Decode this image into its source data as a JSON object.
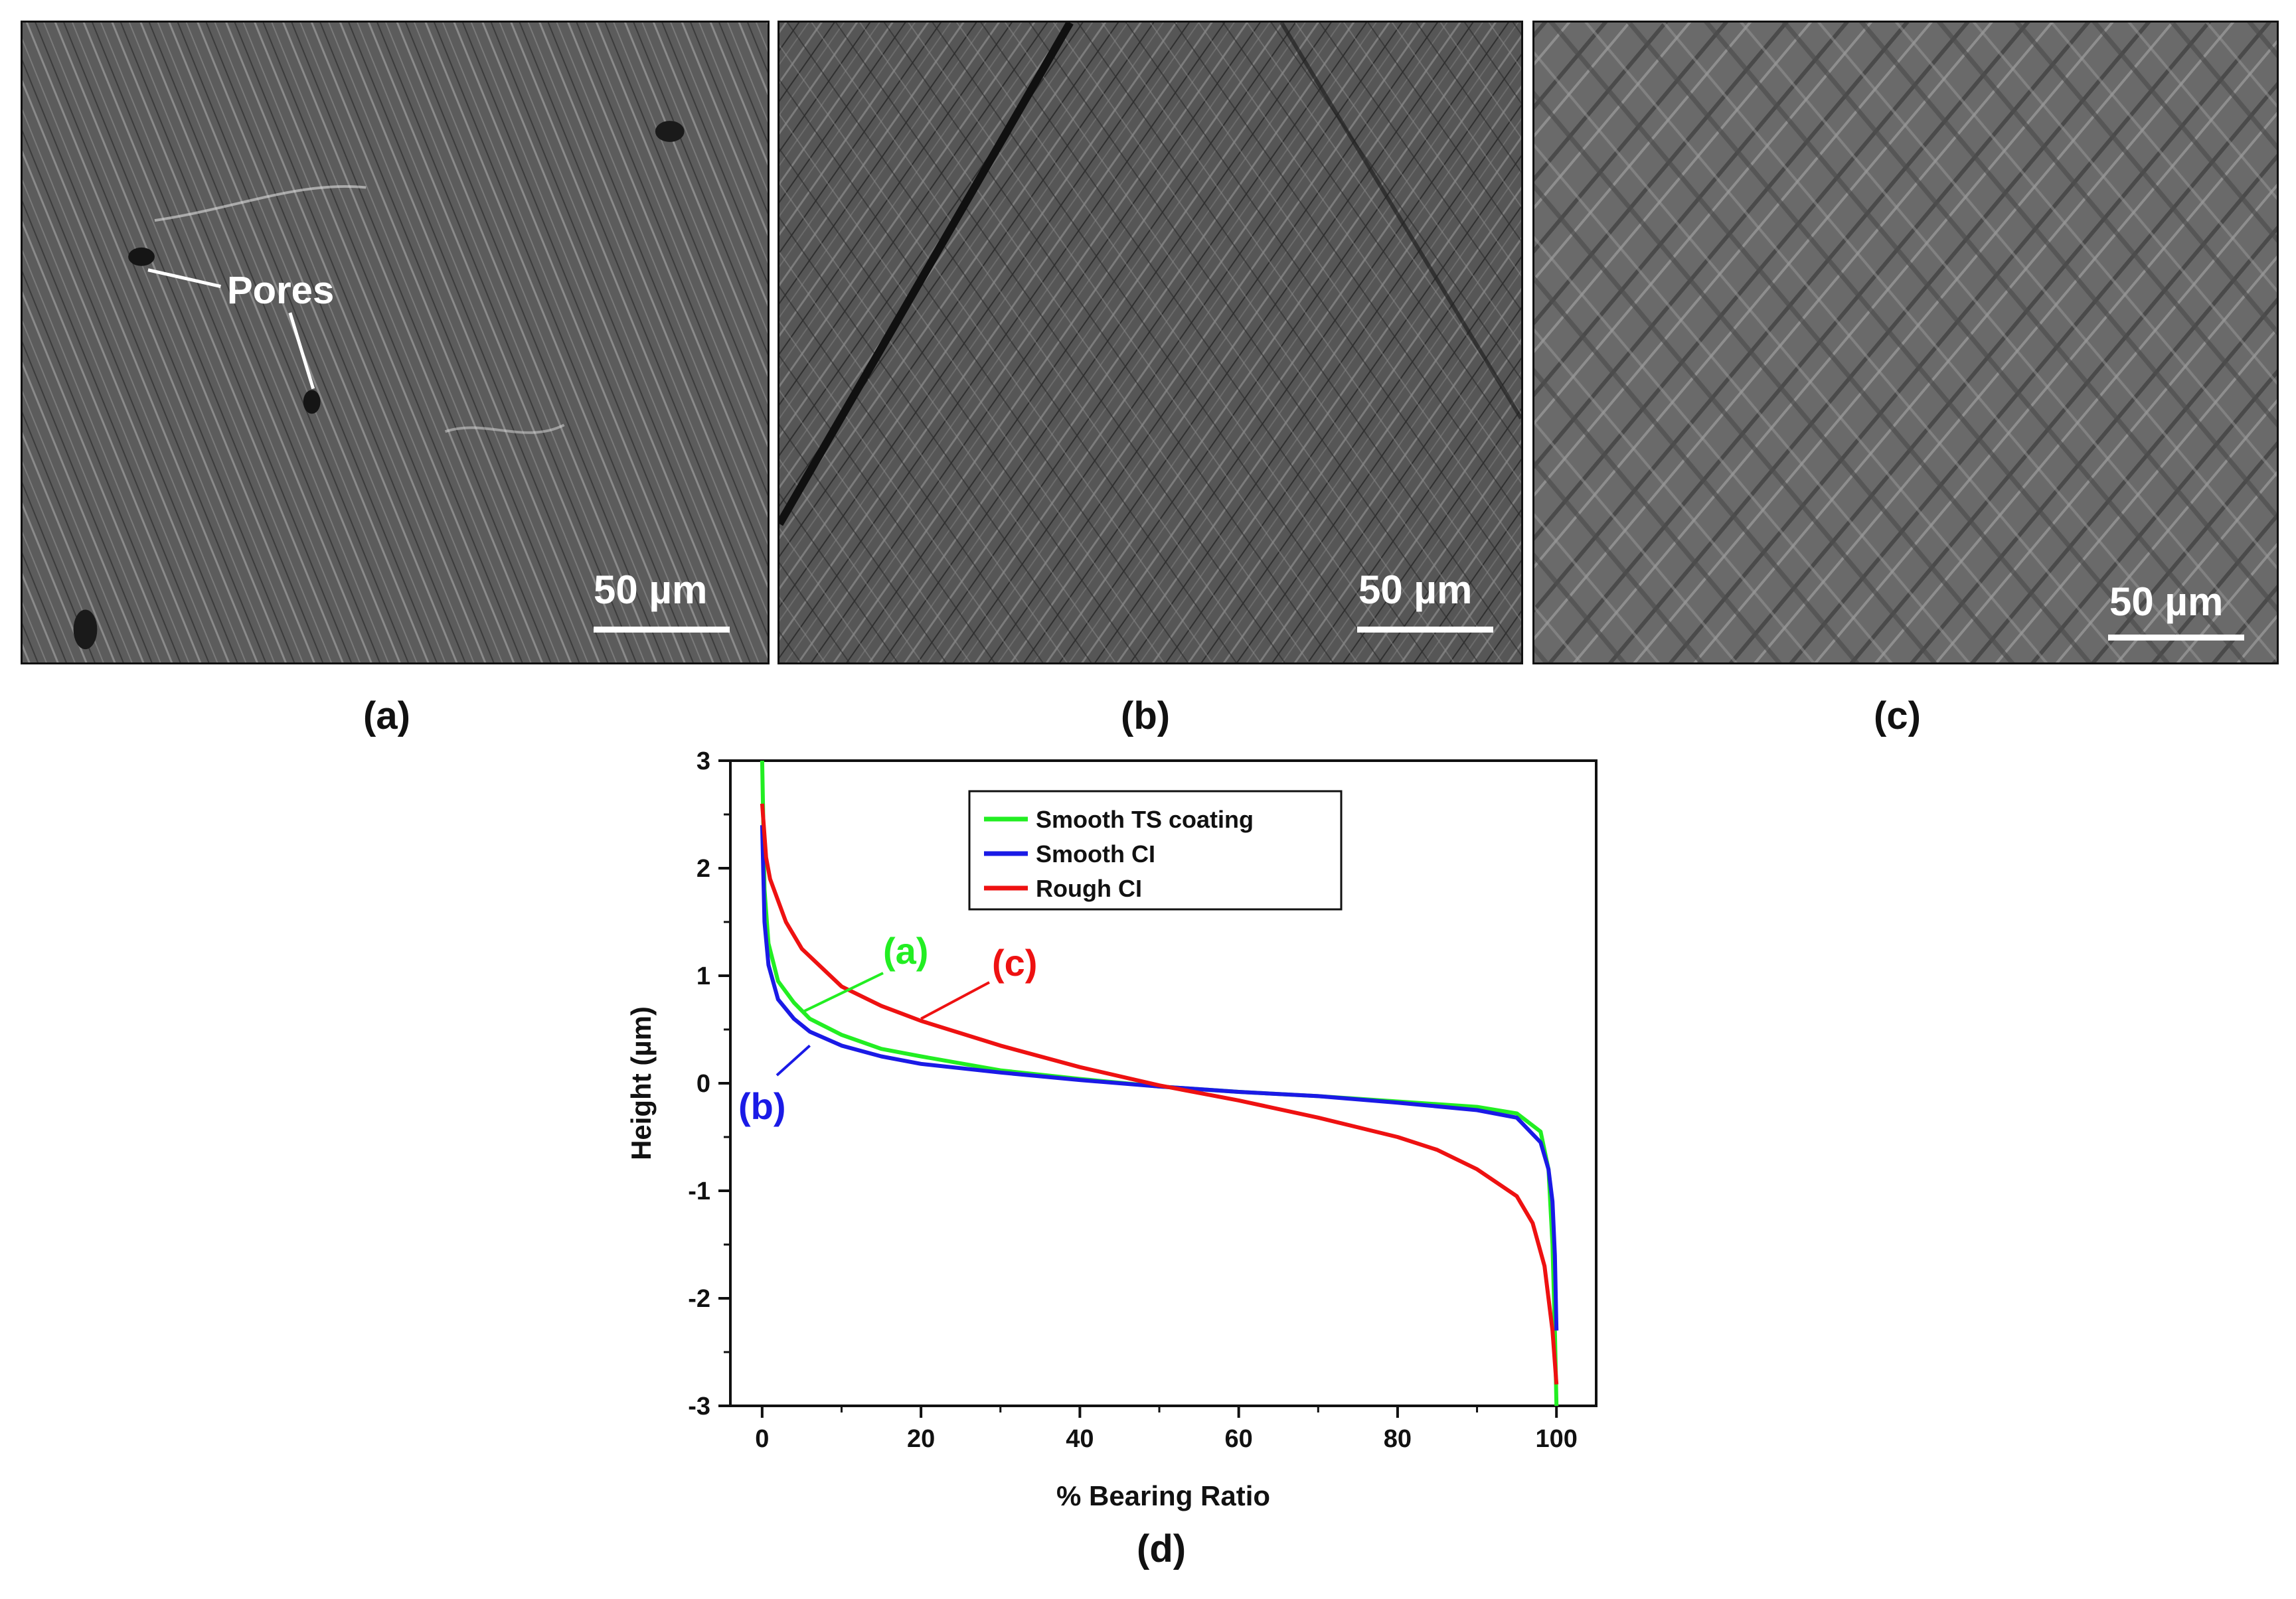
{
  "panels": {
    "a": {
      "label": "(a)",
      "scalebar": "50 µm",
      "annotation": "Pores"
    },
    "b": {
      "label": "(b)",
      "scalebar": "50 µm"
    },
    "c": {
      "label": "(c)",
      "scalebar": "50 µm"
    },
    "d": {
      "label": "(d)"
    }
  },
  "chart_data": {
    "type": "line",
    "title": "",
    "xlabel": "% Bearing Ratio",
    "ylabel": "Height (µm)",
    "xlim": [
      -4,
      105
    ],
    "ylim": [
      -3,
      3
    ],
    "xticks": [
      0,
      20,
      40,
      60,
      80,
      100
    ],
    "yticks": [
      -3,
      -2,
      -1,
      0,
      1,
      2,
      3
    ],
    "grid": false,
    "legend_position": "top-center",
    "series": [
      {
        "name": "Smooth TS coating",
        "color": "#22ee22",
        "points": [
          [
            0,
            3.0
          ],
          [
            0.3,
            1.8
          ],
          [
            0.8,
            1.3
          ],
          [
            2,
            0.95
          ],
          [
            4,
            0.75
          ],
          [
            6,
            0.6
          ],
          [
            10,
            0.45
          ],
          [
            15,
            0.32
          ],
          [
            20,
            0.25
          ],
          [
            30,
            0.12
          ],
          [
            40,
            0.04
          ],
          [
            50,
            -0.03
          ],
          [
            60,
            -0.08
          ],
          [
            70,
            -0.12
          ],
          [
            80,
            -0.17
          ],
          [
            90,
            -0.22
          ],
          [
            95,
            -0.28
          ],
          [
            98,
            -0.45
          ],
          [
            99,
            -0.8
          ],
          [
            99.5,
            -1.5
          ],
          [
            99.8,
            -2.3
          ],
          [
            100,
            -3.0
          ]
        ]
      },
      {
        "name": "Smooth CI",
        "color": "#1a1ae6",
        "points": [
          [
            0,
            2.4
          ],
          [
            0.3,
            1.5
          ],
          [
            0.8,
            1.1
          ],
          [
            2,
            0.78
          ],
          [
            4,
            0.6
          ],
          [
            6,
            0.48
          ],
          [
            10,
            0.35
          ],
          [
            15,
            0.25
          ],
          [
            20,
            0.18
          ],
          [
            30,
            0.1
          ],
          [
            40,
            0.03
          ],
          [
            50,
            -0.03
          ],
          [
            60,
            -0.08
          ],
          [
            70,
            -0.12
          ],
          [
            80,
            -0.18
          ],
          [
            90,
            -0.25
          ],
          [
            95,
            -0.32
          ],
          [
            98,
            -0.55
          ],
          [
            99,
            -0.8
          ],
          [
            99.5,
            -1.1
          ],
          [
            99.8,
            -1.6
          ],
          [
            100,
            -2.3
          ]
        ]
      },
      {
        "name": "Rough CI",
        "color": "#ee1111",
        "points": [
          [
            0,
            2.6
          ],
          [
            0.5,
            2.1
          ],
          [
            1,
            1.9
          ],
          [
            3,
            1.5
          ],
          [
            5,
            1.25
          ],
          [
            10,
            0.9
          ],
          [
            15,
            0.72
          ],
          [
            20,
            0.58
          ],
          [
            30,
            0.35
          ],
          [
            40,
            0.15
          ],
          [
            50,
            -0.02
          ],
          [
            60,
            -0.16
          ],
          [
            70,
            -0.32
          ],
          [
            80,
            -0.5
          ],
          [
            85,
            -0.62
          ],
          [
            90,
            -0.8
          ],
          [
            95,
            -1.05
          ],
          [
            97,
            -1.3
          ],
          [
            98.5,
            -1.7
          ],
          [
            99.5,
            -2.3
          ],
          [
            100,
            -2.8
          ]
        ]
      }
    ],
    "annotations": [
      {
        "text": "(a)",
        "color": "#22ee22"
      },
      {
        "text": "(b)",
        "color": "#1a1ae6"
      },
      {
        "text": "(c)",
        "color": "#ee1111"
      }
    ]
  }
}
